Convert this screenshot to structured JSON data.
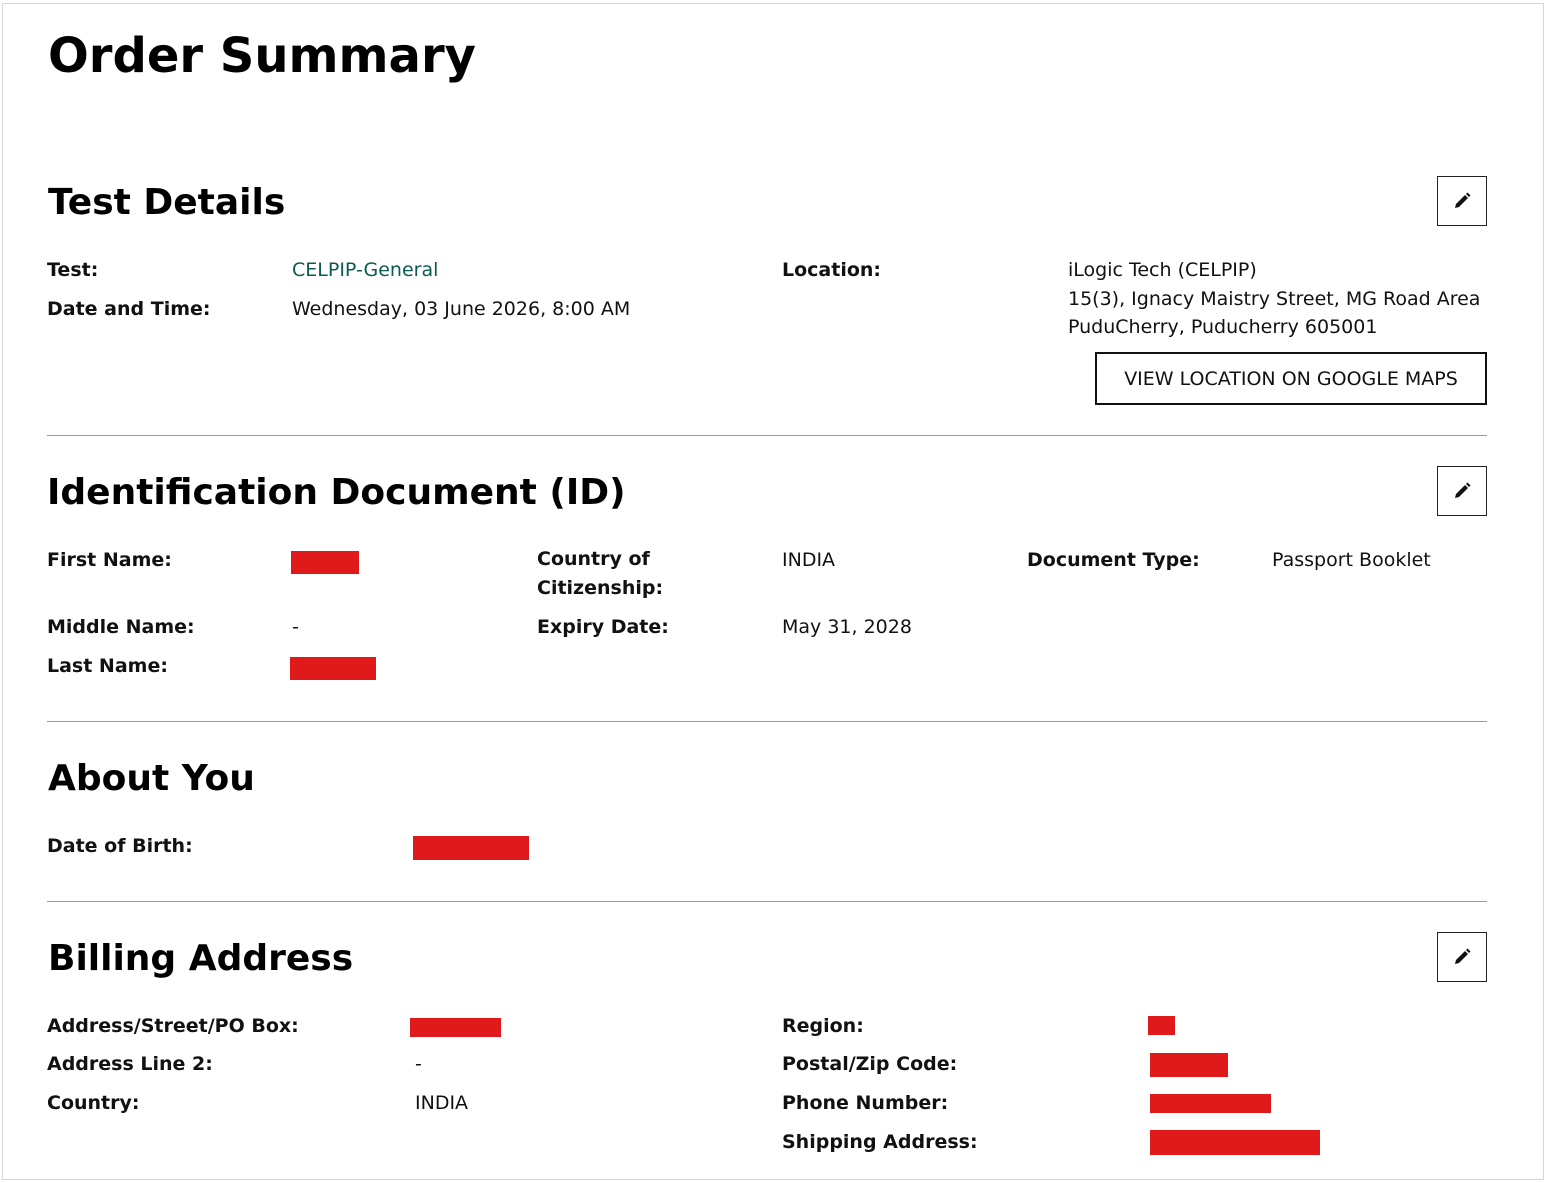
{
  "page": {
    "title": "Order Summary"
  },
  "test_details": {
    "title": "Test Details",
    "test_label": "Test:",
    "test_value": "CELPIP-General",
    "datetime_label": "Date and Time:",
    "datetime_value": "Wednesday, 03 June 2026, 8:00 AM",
    "location_label": "Location:",
    "location_name": "iLogic Tech (CELPIP)",
    "location_street": "15(3), Ignacy Maistry Street, MG Road Area",
    "location_city": "PuduCherry, Puducherry 605001",
    "maps_button_label": "VIEW LOCATION ON GOOGLE MAPS"
  },
  "identification": {
    "title": "Identification Document (ID)",
    "first_name_label": "First Name:",
    "middle_name_label": "Middle Name:",
    "middle_name_value": "-",
    "last_name_label": "Last Name:",
    "citizenship_label_line1": "Country of",
    "citizenship_label_line2": "Citizenship:",
    "citizenship_value": "INDIA",
    "expiry_label": "Expiry Date:",
    "expiry_value": "May 31, 2028",
    "doc_type_label": "Document Type:",
    "doc_type_value": "Passport Booklet"
  },
  "about_you": {
    "title": "About You",
    "dob_label": "Date of Birth:"
  },
  "billing": {
    "title": "Billing Address",
    "address_label": "Address/Street/PO Box:",
    "address2_label": "Address Line 2:",
    "address2_value": "-",
    "country_label": "Country:",
    "country_value": "INDIA",
    "region_label": "Region:",
    "postal_label": "Postal/Zip Code:",
    "phone_label": "Phone Number:",
    "shipping_label": "Shipping Address:"
  },
  "icons": {
    "edit": "pencil-icon"
  },
  "colors": {
    "link": "#0b5b52",
    "redaction": "#e01a1a",
    "divider": "#9a9a9a"
  }
}
